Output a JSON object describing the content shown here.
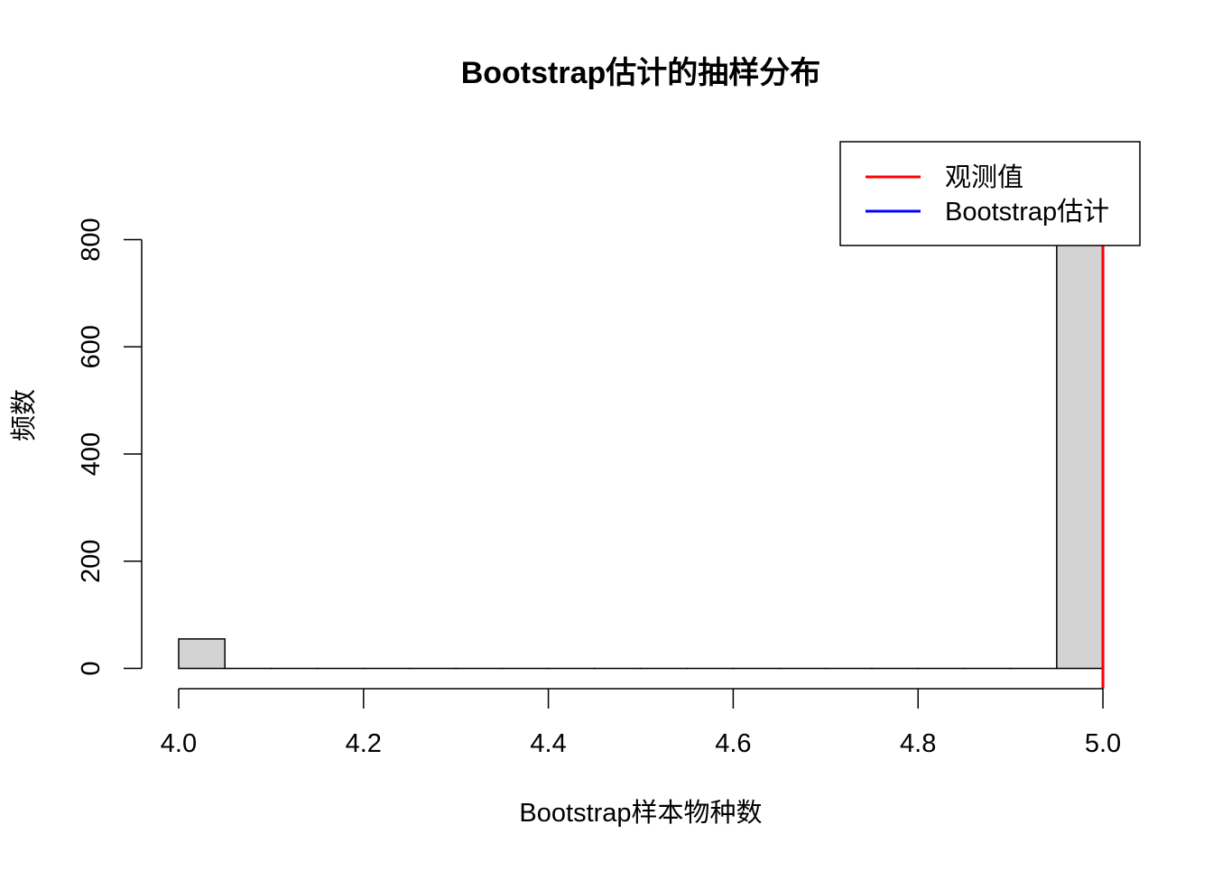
{
  "chart_data": {
    "type": "histogram",
    "title": "Bootstrap估计的抽样分布",
    "xlabel": "Bootstrap样本物种数",
    "ylabel": "频数",
    "bins": [
      4.0,
      4.05,
      4.1,
      4.15,
      4.2,
      4.25,
      4.3,
      4.35,
      4.4,
      4.45,
      4.5,
      4.55,
      4.6,
      4.65,
      4.7,
      4.75,
      4.8,
      4.85,
      4.9,
      4.95,
      5.0
    ],
    "values": [
      55,
      0,
      0,
      0,
      0,
      0,
      0,
      0,
      0,
      0,
      0,
      0,
      0,
      0,
      0,
      0,
      0,
      0,
      0,
      945
    ],
    "color": "#d3d3d3",
    "xlim": [
      3.96,
      5.04
    ],
    "xticks": [
      {
        "value": 4.0,
        "label": "4.0"
      },
      4.2,
      4.4,
      4.6,
      4.8,
      {
        "value": 5.0,
        "label": "5.0"
      }
    ],
    "ylim": [
      -37.8,
      982.8
    ],
    "yticks": [
      0,
      200,
      400,
      600,
      800
    ],
    "vlines": [
      {
        "name": "Bootstrap估计",
        "color": "blue",
        "value": 5.0
      },
      {
        "name": "观测值",
        "color": "red",
        "value": 5.0
      }
    ],
    "legend": "topright"
  }
}
